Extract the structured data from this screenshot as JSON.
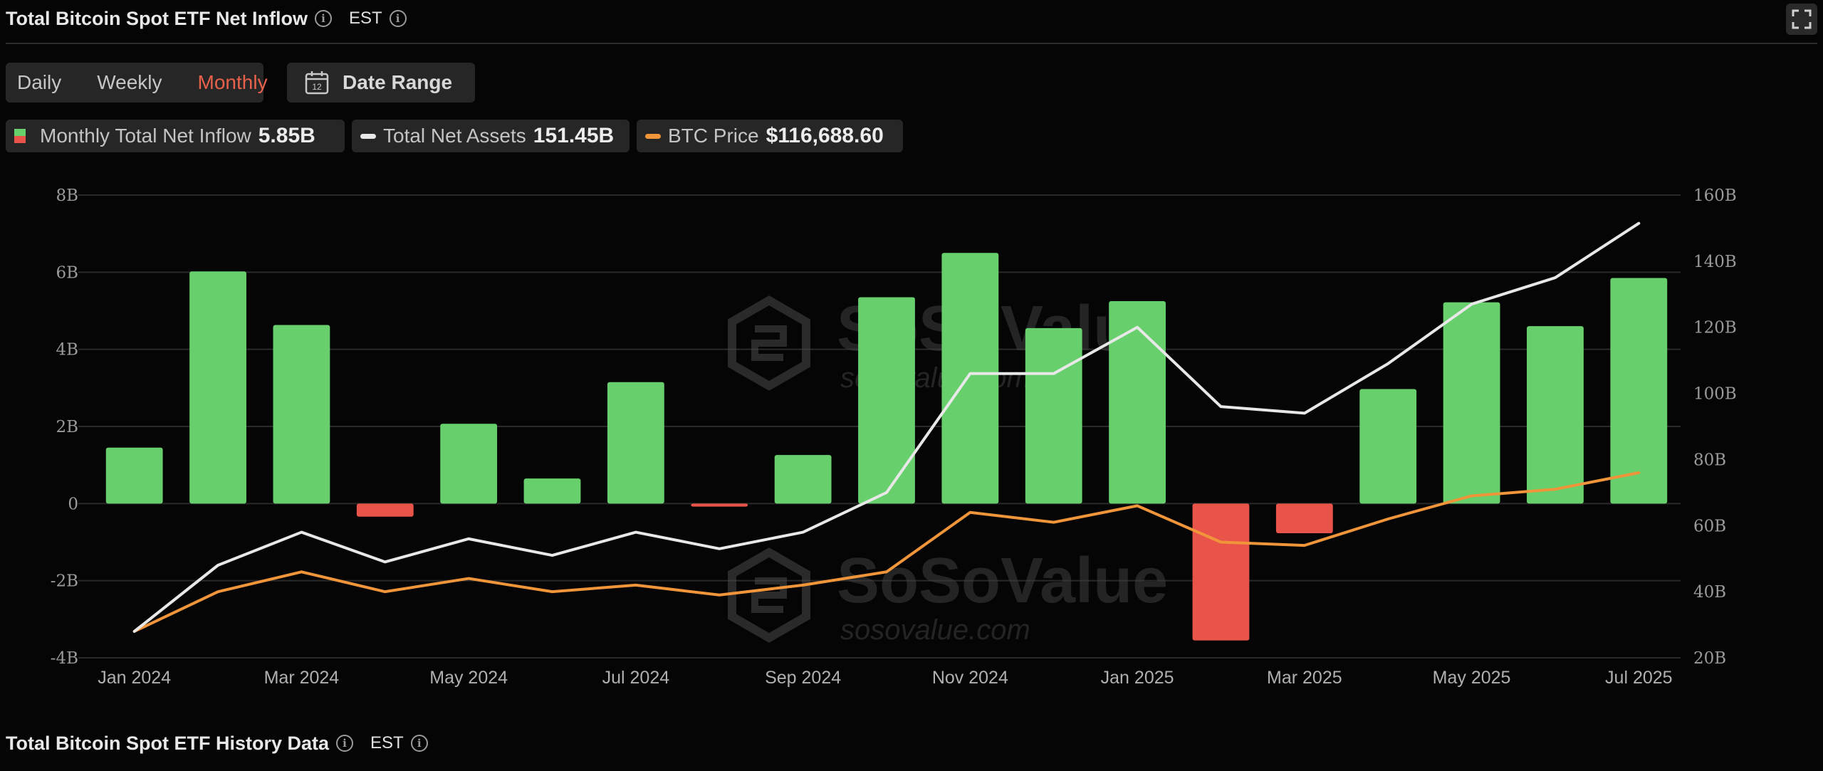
{
  "header": {
    "title": "Total Bitcoin Spot ETF Net Inflow",
    "timezone": "EST"
  },
  "tabs": [
    {
      "label": "Daily"
    },
    {
      "label": "Weekly"
    },
    {
      "label": "Monthly"
    }
  ],
  "active_tab": "Monthly",
  "date_range_label": "Date Range",
  "date_range_day": "12",
  "legend": {
    "inflow": {
      "label": "Monthly Total Net Inflow",
      "value": "5.85B"
    },
    "assets": {
      "label": "Total Net Assets",
      "value": "151.45B"
    },
    "price": {
      "label": "BTC Price",
      "value": "$116,688.60"
    }
  },
  "watermark": {
    "brand": "SoSoValue",
    "site": "sosovalue.com"
  },
  "footer": {
    "title": "Total Bitcoin Spot ETF History Data",
    "timezone": "EST"
  },
  "colors": {
    "positive": "#67d06c",
    "negative": "#e8534a",
    "assets_line": "#e8e8e8",
    "price_line": "#f0953a",
    "accent": "#e8614a"
  },
  "chart_data": {
    "type": "bar",
    "categories": [
      "Jan 2024",
      "Feb 2024",
      "Mar 2024",
      "Apr 2024",
      "May 2024",
      "Jun 2024",
      "Jul 2024",
      "Aug 2024",
      "Sep 2024",
      "Oct 2024",
      "Nov 2024",
      "Dec 2024",
      "Jan 2025",
      "Feb 2025",
      "Mar 2025",
      "Apr 2025",
      "May 2025",
      "Jun 2025",
      "Jul 2025"
    ],
    "x_tick_labels": [
      "Jan 2024",
      "Mar 2024",
      "May 2024",
      "Jul 2024",
      "Sep 2024",
      "Nov 2024",
      "Jan 2025",
      "Mar 2025",
      "May 2025",
      "Jul 2025"
    ],
    "series": [
      {
        "name": "Monthly Total Net Inflow",
        "type": "bar",
        "axis": "left",
        "values": [
          1.45,
          6.02,
          4.63,
          -0.34,
          2.07,
          0.65,
          3.15,
          -0.08,
          1.26,
          5.35,
          6.5,
          4.55,
          5.25,
          -3.55,
          -0.77,
          2.97,
          5.22,
          4.6,
          5.85
        ]
      },
      {
        "name": "Total Net Assets",
        "type": "line",
        "axis": "right",
        "values": [
          28,
          48,
          58,
          49,
          56,
          51,
          58,
          53,
          58,
          70,
          106,
          106,
          120,
          96,
          94,
          109,
          127,
          135,
          151.45
        ]
      },
      {
        "name": "BTC Price",
        "type": "line",
        "axis": "right",
        "values": [
          28.0,
          40.0,
          46.0,
          40.0,
          44.0,
          40.0,
          42.0,
          39.0,
          42.0,
          46.0,
          64.0,
          61.0,
          66.0,
          55.0,
          54.0,
          62.0,
          69.0,
          71.0,
          76.0
        ]
      }
    ],
    "y_left": {
      "ticks": [
        -4,
        -2,
        0,
        2,
        4,
        6,
        8
      ],
      "tick_labels": [
        "-4B",
        "-2B",
        "0",
        "2B",
        "4B",
        "6B",
        "8B"
      ],
      "range": [
        -4,
        8
      ]
    },
    "y_right": {
      "ticks": [
        20,
        40,
        60,
        80,
        100,
        120,
        140,
        160
      ],
      "tick_labels": [
        "20B",
        "40B",
        "60B",
        "80B",
        "100B",
        "120B",
        "140B",
        "160B"
      ],
      "range": [
        20,
        160
      ]
    },
    "grid": true
  }
}
